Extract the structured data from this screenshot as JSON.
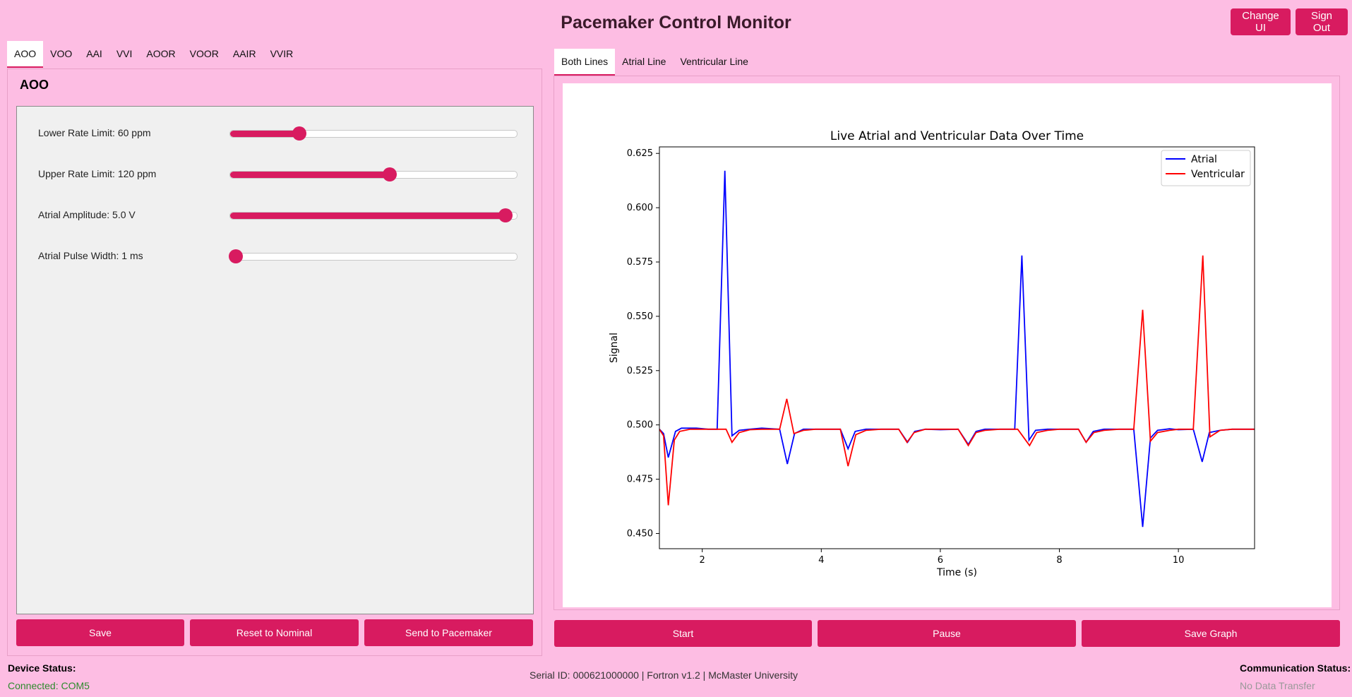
{
  "header": {
    "title": "Pacemaker Control Monitor",
    "change_ui": "Change UI",
    "sign_out": "Sign Out"
  },
  "mode_tabs": [
    "AOO",
    "VOO",
    "AAI",
    "VVI",
    "AOOR",
    "VOOR",
    "AAIR",
    "VVIR"
  ],
  "active_mode": "AOO",
  "params": [
    {
      "label": "Lower Rate Limit: 60 ppm",
      "value_fraction": 0.23
    },
    {
      "label": "Upper Rate Limit: 120 ppm",
      "value_fraction": 0.56
    },
    {
      "label": "Atrial Amplitude: 5.0 V",
      "value_fraction": 0.98
    },
    {
      "label": "Atrial Pulse Width: 1 ms",
      "value_fraction": 0.0
    }
  ],
  "left_buttons": {
    "save": "Save",
    "reset": "Reset to Nominal",
    "send": "Send to Pacemaker"
  },
  "graph_tabs": [
    "Both Lines",
    "Atrial Line",
    "Ventricular Line"
  ],
  "graph_buttons": {
    "start": "Start",
    "pause": "Pause",
    "save_graph": "Save Graph"
  },
  "status": {
    "device_label": "Device Status:",
    "device_value": "Connected: COM5",
    "comm_label": "Communication Status:",
    "comm_value": "No Data Transfer",
    "device_color": "#2E8B2E",
    "comm_color": "#999999"
  },
  "footer": "Serial ID: 000621000000 | Fortron v1.2 | McMaster University",
  "chart_data": {
    "type": "line",
    "title": "Live Atrial and Ventricular Data Over Time",
    "xlabel": "Time (s)",
    "ylabel": "Signal",
    "xlim": [
      1.28,
      11.28
    ],
    "ylim": [
      0.443,
      0.628
    ],
    "xticks": [
      2,
      4,
      6,
      8,
      10
    ],
    "yticks": [
      0.45,
      0.475,
      0.5,
      0.525,
      0.55,
      0.575,
      0.6,
      0.625
    ],
    "legend_position": "top-right",
    "series": [
      {
        "name": "Atrial",
        "color": "#0000FF",
        "points": [
          [
            1.28,
            0.498
          ],
          [
            1.35,
            0.496
          ],
          [
            1.43,
            0.485
          ],
          [
            1.55,
            0.497
          ],
          [
            1.65,
            0.4985
          ],
          [
            1.9,
            0.4985
          ],
          [
            2.1,
            0.498
          ],
          [
            2.25,
            0.498
          ],
          [
            2.38,
            0.617
          ],
          [
            2.5,
            0.495
          ],
          [
            2.62,
            0.4975
          ],
          [
            2.8,
            0.498
          ],
          [
            3.0,
            0.4985
          ],
          [
            3.3,
            0.498
          ],
          [
            3.43,
            0.482
          ],
          [
            3.55,
            0.496
          ],
          [
            3.7,
            0.498
          ],
          [
            3.9,
            0.498
          ],
          [
            4.1,
            0.498
          ],
          [
            4.32,
            0.498
          ],
          [
            4.45,
            0.489
          ],
          [
            4.57,
            0.497
          ],
          [
            4.75,
            0.498
          ],
          [
            5.0,
            0.498
          ],
          [
            5.3,
            0.498
          ],
          [
            5.45,
            0.492
          ],
          [
            5.57,
            0.497
          ],
          [
            5.75,
            0.498
          ],
          [
            6.0,
            0.4978
          ],
          [
            6.3,
            0.498
          ],
          [
            6.47,
            0.491
          ],
          [
            6.6,
            0.497
          ],
          [
            6.75,
            0.498
          ],
          [
            7.0,
            0.498
          ],
          [
            7.25,
            0.498
          ],
          [
            7.37,
            0.578
          ],
          [
            7.49,
            0.493
          ],
          [
            7.6,
            0.4975
          ],
          [
            7.8,
            0.498
          ],
          [
            8.0,
            0.498
          ],
          [
            8.2,
            0.498
          ],
          [
            8.32,
            0.498
          ],
          [
            8.45,
            0.492
          ],
          [
            8.57,
            0.497
          ],
          [
            8.75,
            0.498
          ],
          [
            9.0,
            0.498
          ],
          [
            9.25,
            0.498
          ],
          [
            9.4,
            0.453
          ],
          [
            9.53,
            0.494
          ],
          [
            9.65,
            0.4975
          ],
          [
            9.85,
            0.4982
          ],
          [
            10.0,
            0.4978
          ],
          [
            10.25,
            0.498
          ],
          [
            10.4,
            0.483
          ],
          [
            10.52,
            0.4965
          ],
          [
            10.7,
            0.4975
          ],
          [
            10.9,
            0.498
          ],
          [
            11.1,
            0.498
          ],
          [
            11.28,
            0.498
          ]
        ]
      },
      {
        "name": "Ventricular",
        "color": "#FF0000",
        "points": [
          [
            1.28,
            0.498
          ],
          [
            1.35,
            0.495
          ],
          [
            1.43,
            0.463
          ],
          [
            1.53,
            0.493
          ],
          [
            1.62,
            0.497
          ],
          [
            1.8,
            0.498
          ],
          [
            2.0,
            0.498
          ],
          [
            2.25,
            0.498
          ],
          [
            2.4,
            0.498
          ],
          [
            2.5,
            0.492
          ],
          [
            2.62,
            0.4965
          ],
          [
            2.8,
            0.4978
          ],
          [
            3.0,
            0.498
          ],
          [
            3.3,
            0.498
          ],
          [
            3.42,
            0.512
          ],
          [
            3.54,
            0.496
          ],
          [
            3.7,
            0.4975
          ],
          [
            3.9,
            0.498
          ],
          [
            4.1,
            0.498
          ],
          [
            4.32,
            0.498
          ],
          [
            4.45,
            0.481
          ],
          [
            4.58,
            0.4955
          ],
          [
            4.75,
            0.4975
          ],
          [
            5.0,
            0.498
          ],
          [
            5.3,
            0.498
          ],
          [
            5.44,
            0.492
          ],
          [
            5.56,
            0.4965
          ],
          [
            5.75,
            0.498
          ],
          [
            6.0,
            0.498
          ],
          [
            6.3,
            0.498
          ],
          [
            6.47,
            0.4905
          ],
          [
            6.6,
            0.4965
          ],
          [
            6.75,
            0.4975
          ],
          [
            7.0,
            0.498
          ],
          [
            7.3,
            0.498
          ],
          [
            7.5,
            0.4905
          ],
          [
            7.62,
            0.4965
          ],
          [
            7.8,
            0.4975
          ],
          [
            8.0,
            0.498
          ],
          [
            8.2,
            0.498
          ],
          [
            8.32,
            0.498
          ],
          [
            8.45,
            0.492
          ],
          [
            8.58,
            0.4965
          ],
          [
            8.75,
            0.4975
          ],
          [
            9.0,
            0.498
          ],
          [
            9.25,
            0.498
          ],
          [
            9.4,
            0.553
          ],
          [
            9.53,
            0.4925
          ],
          [
            9.65,
            0.4965
          ],
          [
            9.85,
            0.4975
          ],
          [
            10.0,
            0.498
          ],
          [
            10.25,
            0.498
          ],
          [
            10.41,
            0.578
          ],
          [
            10.53,
            0.4945
          ],
          [
            10.7,
            0.4975
          ],
          [
            10.9,
            0.498
          ],
          [
            11.1,
            0.498
          ],
          [
            11.28,
            0.498
          ]
        ]
      }
    ]
  }
}
